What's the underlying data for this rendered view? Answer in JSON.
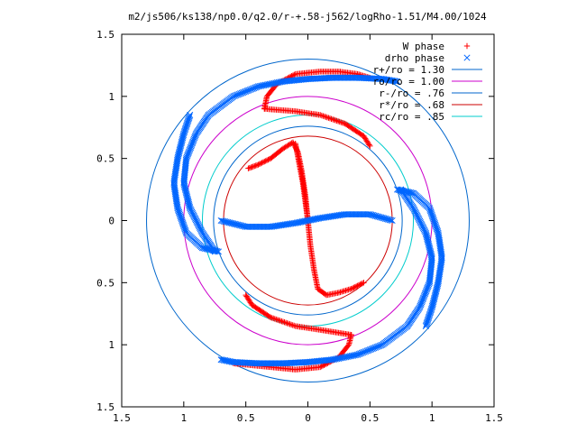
{
  "chart_data": {
    "type": "scatter",
    "title": "m2/js506/ks138/np0.0/q2.0/r-+.58-j562/logRho-1.51/M4.00/1024",
    "xlabel": "",
    "ylabel": "",
    "xlim": [
      -1.5,
      1.5
    ],
    "ylim": [
      -1.5,
      1.5
    ],
    "xticks": [
      -1.5,
      -1,
      -0.5,
      0,
      0.5,
      1,
      1.5
    ],
    "yticks": [
      -1.5,
      -1,
      -0.5,
      0,
      0.5,
      1,
      1.5
    ],
    "xtick_labels": [
      "1.5",
      "1",
      "0.5",
      "0",
      "0.5",
      "1",
      "1.5"
    ],
    "ytick_labels": [
      "1.5",
      "1",
      "0.5",
      "0",
      "0.5",
      "1",
      "1.5"
    ],
    "grid": false,
    "legend_position": "top-right",
    "series": [
      {
        "name": "W phase",
        "marker": "plus",
        "color": "#ff0000",
        "segments": [
          [
            [
              0.0,
              0.0
            ],
            [
              -0.02,
              0.2
            ],
            [
              -0.05,
              0.4
            ],
            [
              -0.08,
              0.55
            ],
            [
              -0.12,
              0.63
            ],
            [
              -0.2,
              0.58
            ],
            [
              -0.3,
              0.5
            ],
            [
              -0.4,
              0.45
            ],
            [
              -0.48,
              0.42
            ]
          ],
          [
            [
              0.0,
              0.0
            ],
            [
              0.02,
              -0.2
            ],
            [
              0.05,
              -0.4
            ],
            [
              0.08,
              -0.55
            ],
            [
              0.15,
              -0.6
            ],
            [
              0.25,
              -0.58
            ],
            [
              0.35,
              -0.55
            ],
            [
              0.45,
              -0.5
            ]
          ],
          [
            [
              -0.35,
              0.9
            ],
            [
              -0.33,
              1.0
            ],
            [
              -0.25,
              1.1
            ],
            [
              -0.1,
              1.18
            ],
            [
              0.1,
              1.2
            ],
            [
              0.25,
              1.2
            ],
            [
              0.4,
              1.18
            ],
            [
              0.5,
              1.15
            ]
          ],
          [
            [
              -0.35,
              0.9
            ],
            [
              -0.1,
              0.88
            ],
            [
              0.1,
              0.85
            ],
            [
              0.3,
              0.78
            ],
            [
              0.45,
              0.68
            ],
            [
              0.5,
              0.6
            ]
          ],
          [
            [
              0.35,
              -0.92
            ],
            [
              0.33,
              -1.0
            ],
            [
              0.25,
              -1.1
            ],
            [
              0.1,
              -1.18
            ],
            [
              -0.1,
              -1.2
            ],
            [
              -0.3,
              -1.18
            ],
            [
              -0.5,
              -1.16
            ],
            [
              -0.6,
              -1.15
            ]
          ],
          [
            [
              0.35,
              -0.92
            ],
            [
              0.1,
              -0.88
            ],
            [
              -0.1,
              -0.85
            ],
            [
              -0.3,
              -0.78
            ],
            [
              -0.45,
              -0.68
            ],
            [
              -0.5,
              -0.6
            ]
          ],
          [
            [
              0.0,
              0.0
            ],
            [
              -0.04,
              0.3
            ],
            [
              -0.1,
              0.62
            ]
          ]
        ]
      },
      {
        "name": "drho phase",
        "marker": "cross",
        "color": "#0066ff",
        "segments": [
          [
            [
              -0.7,
              0.0
            ],
            [
              -0.5,
              -0.05
            ],
            [
              -0.3,
              -0.05
            ],
            [
              -0.1,
              -0.02
            ],
            [
              0.0,
              0.0
            ],
            [
              0.1,
              0.02
            ],
            [
              0.3,
              0.05
            ],
            [
              0.5,
              0.05
            ],
            [
              0.68,
              0.0
            ]
          ],
          [
            [
              -0.75,
              -0.25
            ],
            [
              -0.85,
              -0.1
            ],
            [
              -0.95,
              0.1
            ],
            [
              -1.0,
              0.3
            ],
            [
              -0.98,
              0.5
            ],
            [
              -0.9,
              0.7
            ],
            [
              -0.8,
              0.85
            ],
            [
              -0.6,
              1.0
            ],
            [
              -0.4,
              1.08
            ],
            [
              -0.2,
              1.12
            ],
            [
              0.0,
              1.14
            ],
            [
              0.2,
              1.15
            ],
            [
              0.4,
              1.15
            ],
            [
              0.6,
              1.14
            ],
            [
              0.72,
              1.12
            ]
          ],
          [
            [
              0.75,
              0.25
            ],
            [
              0.85,
              0.1
            ],
            [
              0.95,
              -0.1
            ],
            [
              1.0,
              -0.3
            ],
            [
              0.98,
              -0.5
            ],
            [
              0.9,
              -0.7
            ],
            [
              0.8,
              -0.85
            ],
            [
              0.6,
              -1.0
            ],
            [
              0.4,
              -1.08
            ],
            [
              0.2,
              -1.12
            ],
            [
              0.0,
              -1.14
            ],
            [
              -0.2,
              -1.15
            ],
            [
              -0.4,
              -1.15
            ],
            [
              -0.6,
              -1.14
            ],
            [
              -0.7,
              -1.12
            ]
          ],
          [
            [
              0.72,
              0.25
            ],
            [
              0.85,
              0.22
            ],
            [
              0.98,
              0.1
            ],
            [
              1.05,
              -0.1
            ],
            [
              1.08,
              -0.3
            ],
            [
              1.05,
              -0.5
            ],
            [
              1.0,
              -0.7
            ],
            [
              0.95,
              -0.85
            ]
          ],
          [
            [
              -0.72,
              -0.25
            ],
            [
              -0.85,
              -0.22
            ],
            [
              -0.98,
              -0.1
            ],
            [
              -1.05,
              0.1
            ],
            [
              -1.08,
              0.3
            ],
            [
              -1.05,
              0.5
            ],
            [
              -1.0,
              0.7
            ],
            [
              -0.95,
              0.85
            ]
          ]
        ]
      }
    ],
    "circles": [
      {
        "name": "r+/ro = 1.30",
        "radius": 1.3,
        "color": "#0066cc"
      },
      {
        "name": "ro/ro = 1.00",
        "radius": 1.0,
        "color": "#cc00cc"
      },
      {
        "name": "r-/ro = .76",
        "radius": 0.76,
        "color": "#0066cc"
      },
      {
        "name": "r*/ro = .68",
        "radius": 0.68,
        "color": "#cc0000"
      },
      {
        "name": "rc/ro = .85",
        "radius": 0.85,
        "color": "#00cccc"
      }
    ]
  }
}
